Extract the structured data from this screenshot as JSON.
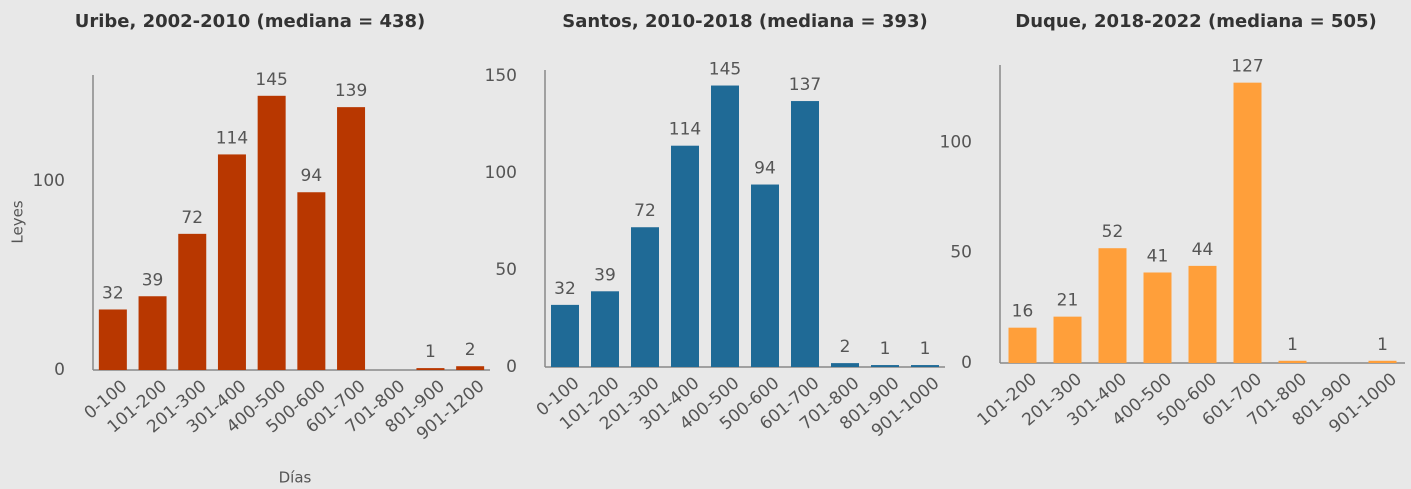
{
  "chart_data": [
    {
      "type": "bar",
      "title": "Uribe, 2002-2010 (mediana = 438)",
      "x_label": "Días",
      "y_label": "Leyes",
      "categories": [
        "0-100",
        "101-200",
        "201-300",
        "301-400",
        "400-500",
        "500-600",
        "601-700",
        "701-800",
        "801-900",
        "901-1200"
      ],
      "values": [
        32,
        39,
        72,
        114,
        145,
        94,
        139,
        null,
        1,
        2
      ],
      "color": "#b83700",
      "ylim": [
        0,
        156
      ],
      "yticks": [
        0,
        100
      ]
    },
    {
      "type": "bar",
      "title": "Santos, 2010-2018 (mediana = 393)",
      "categories": [
        "0-100",
        "101-200",
        "201-300",
        "301-400",
        "400-500",
        "500-600",
        "601-700",
        "701-800",
        "801-900",
        "901-1000"
      ],
      "values": [
        32,
        39,
        72,
        114,
        145,
        94,
        137,
        2,
        1,
        1
      ],
      "color": "#1f6a96",
      "ylim": [
        0,
        153
      ],
      "yticks": [
        0,
        50,
        100,
        150
      ]
    },
    {
      "type": "bar",
      "title": "Duque, 2018-2022 (mediana = 505)",
      "categories": [
        "101-200",
        "201-300",
        "301-400",
        "400-500",
        "500-600",
        "601-700",
        "701-800",
        "801-900",
        "901-1000"
      ],
      "values": [
        16,
        21,
        52,
        41,
        44,
        127,
        1,
        null,
        1
      ],
      "color": "#ff9f3a",
      "ylim": [
        0,
        135
      ],
      "yticks": [
        0,
        50,
        100
      ]
    }
  ]
}
